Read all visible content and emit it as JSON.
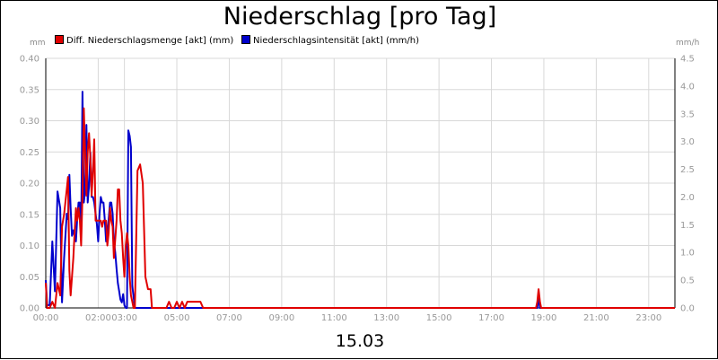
{
  "title": "Niederschlag [pro Tag]",
  "date_label": "15.03",
  "left_unit": "mm",
  "right_unit": "mm/h",
  "legend": [
    {
      "label": "Diff. Niederschlagsmenge [akt] (mm)",
      "color": "#e00000"
    },
    {
      "label": "Niederschlagsintensität [akt] (mm/h)",
      "color": "#0000cc"
    }
  ],
  "chart_data": {
    "type": "line",
    "xlim": [
      0,
      24
    ],
    "x_ticks": [
      "00:00",
      "02:00",
      "03:00",
      "05:00",
      "07:00",
      "09:00",
      "11:00",
      "13:00",
      "15:00",
      "17:00",
      "19:00",
      "21:00",
      "23:00"
    ],
    "x_tick_positions": [
      0,
      2,
      3,
      5,
      7,
      9,
      11,
      13,
      15,
      17,
      19,
      21,
      23
    ],
    "y_left": {
      "label": "mm",
      "lim": [
        0,
        0.4
      ],
      "ticks": [
        "0.00",
        "0.05",
        "0.10",
        "0.15",
        "0.20",
        "0.25",
        "0.30",
        "0.35",
        "0.40"
      ]
    },
    "y_right": {
      "label": "mm/h",
      "lim": [
        0,
        4.5
      ],
      "ticks": [
        "0.0",
        "0.5",
        "1.0",
        "1.5",
        "2.0",
        "2.5",
        "3.0",
        "3.5",
        "4.0",
        "4.5"
      ]
    },
    "series": [
      {
        "name": "Diff. Niederschlagsmenge [akt] (mm)",
        "axis": "left",
        "color": "#e00000",
        "x": [
          0.0,
          0.05,
          0.15,
          0.25,
          0.35,
          0.45,
          0.55,
          0.62,
          0.7,
          0.8,
          0.85,
          0.9,
          0.95,
          1.0,
          1.05,
          1.1,
          1.15,
          1.2,
          1.25,
          1.3,
          1.35,
          1.4,
          1.45,
          1.5,
          1.55,
          1.6,
          1.65,
          1.7,
          1.75,
          1.8,
          1.85,
          1.9,
          1.95,
          2.0,
          2.05,
          2.1,
          2.15,
          2.2,
          2.25,
          2.3,
          2.35,
          2.4,
          2.45,
          2.5,
          2.55,
          2.6,
          2.65,
          2.7,
          2.75,
          2.8,
          2.85,
          2.9,
          2.95,
          3.0,
          3.05,
          3.1,
          3.15,
          3.2,
          3.25,
          3.3,
          3.35,
          3.4,
          3.5,
          3.6,
          3.7,
          3.8,
          3.9,
          4.0,
          4.05,
          4.1,
          4.15,
          4.2,
          4.25,
          4.3,
          4.35,
          4.4,
          4.45,
          4.5,
          4.6,
          4.7,
          4.8,
          4.9,
          5.0,
          5.1,
          5.2,
          5.3,
          5.4,
          5.5,
          5.6,
          5.7,
          5.8,
          5.9,
          6.0,
          6.2,
          18.7,
          18.75,
          18.8,
          18.85,
          18.9,
          24.0
        ],
        "values": [
          0.04,
          0.0,
          0.0,
          0.01,
          0.0,
          0.04,
          0.02,
          0.13,
          0.15,
          0.19,
          0.21,
          0.06,
          0.02,
          0.05,
          0.08,
          0.12,
          0.16,
          0.14,
          0.16,
          0.14,
          0.1,
          0.18,
          0.32,
          0.25,
          0.18,
          0.25,
          0.28,
          0.24,
          0.18,
          0.22,
          0.27,
          0.14,
          0.14,
          0.14,
          0.14,
          0.14,
          0.13,
          0.14,
          0.14,
          0.14,
          0.1,
          0.12,
          0.16,
          0.14,
          0.13,
          0.08,
          0.11,
          0.14,
          0.19,
          0.19,
          0.14,
          0.12,
          0.08,
          0.05,
          0.1,
          0.12,
          0.1,
          0.05,
          0.02,
          0.01,
          0.0,
          0.0,
          0.22,
          0.23,
          0.2,
          0.05,
          0.03,
          0.03,
          0.0,
          0.0,
          0.0,
          0.0,
          0.0,
          0.0,
          0.0,
          0.0,
          0.0,
          0.0,
          0.0,
          0.01,
          0.0,
          0.0,
          0.01,
          0.0,
          0.01,
          0.0,
          0.01,
          0.01,
          0.01,
          0.01,
          0.01,
          0.01,
          0.0,
          0.0,
          0.0,
          0.01,
          0.03,
          0.01,
          0.0,
          0.0
        ]
      },
      {
        "name": "Niederschlagsintensität [akt] (mm/h)",
        "axis": "right",
        "color": "#0000cc",
        "x": [
          0.0,
          0.05,
          0.15,
          0.25,
          0.35,
          0.45,
          0.55,
          0.62,
          0.7,
          0.8,
          0.85,
          0.9,
          0.95,
          1.0,
          1.05,
          1.1,
          1.15,
          1.2,
          1.25,
          1.3,
          1.35,
          1.4,
          1.45,
          1.5,
          1.55,
          1.6,
          1.65,
          1.7,
          1.75,
          1.8,
          1.85,
          1.9,
          1.95,
          2.0,
          2.05,
          2.1,
          2.15,
          2.2,
          2.25,
          2.3,
          2.35,
          2.4,
          2.45,
          2.5,
          2.55,
          2.6,
          2.65,
          2.7,
          2.75,
          2.8,
          2.85,
          2.9,
          2.95,
          3.0,
          3.05,
          3.1,
          3.15,
          3.2,
          3.25,
          3.3,
          3.35,
          3.4,
          3.5,
          3.6,
          3.7,
          3.8,
          3.9,
          4.0,
          4.05,
          4.1,
          4.15,
          4.2,
          4.25,
          4.3,
          4.35,
          4.4,
          4.45,
          4.5,
          4.6,
          4.7,
          4.8,
          4.9,
          5.0,
          5.1,
          5.2,
          5.3,
          5.4,
          5.5,
          5.6,
          5.7,
          5.8,
          5.9,
          6.0,
          6.2,
          18.7,
          18.75,
          18.8,
          18.85,
          18.9,
          24.0
        ],
        "values": [
          0.5,
          0.05,
          0.05,
          1.2,
          0.3,
          2.1,
          1.8,
          0.1,
          0.9,
          1.7,
          1.6,
          2.4,
          1.8,
          1.3,
          1.4,
          1.3,
          1.2,
          1.6,
          1.9,
          1.9,
          1.3,
          3.9,
          1.9,
          2.1,
          3.3,
          1.9,
          2.2,
          2.8,
          2.0,
          2.0,
          1.9,
          1.7,
          1.5,
          1.2,
          1.7,
          2.0,
          1.9,
          1.9,
          1.6,
          1.2,
          1.3,
          1.6,
          1.9,
          1.9,
          1.7,
          1.2,
          1.0,
          0.7,
          0.45,
          0.3,
          0.15,
          0.1,
          0.25,
          0.05,
          0.0,
          0.0,
          3.2,
          3.1,
          2.9,
          0.4,
          0.2,
          0.0,
          0.0,
          0.0,
          0.0,
          0.0,
          0.0,
          0.0,
          0.0,
          0.0,
          0.0,
          0.0,
          0.0,
          0.0,
          0.0,
          0.0,
          0.0,
          0.0,
          0.0,
          0.0,
          0.0,
          0.0,
          0.0,
          0.0,
          0.0,
          0.0,
          0.0,
          0.0,
          0.0,
          0.0,
          0.0,
          0.0,
          0.0,
          0.0,
          0.0,
          0.0,
          0.2,
          0.0,
          0.0,
          0.0
        ]
      }
    ]
  }
}
